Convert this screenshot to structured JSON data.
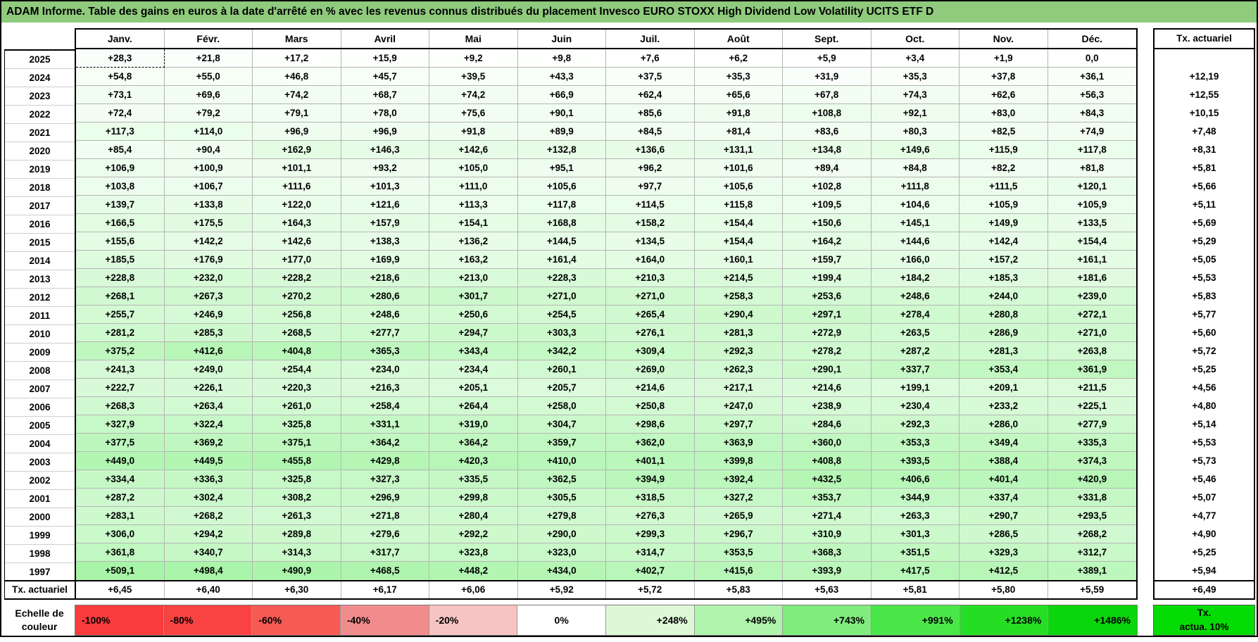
{
  "title": "ADAM Informe. Table des gains en euros à la date d'arrêté en % avec les revenus connus distribués du placement Invesco EURO STOXX High Dividend Low Volatility UCITS ETF D",
  "colors": {
    "title_bg": "#8FCA7D",
    "max_green": "#00E000",
    "grid_line": "#b5b5b5",
    "legend_tx_box_bg": "#05DC05"
  },
  "legend": {
    "label_line1": "Echelle de",
    "label_line2": "couleur",
    "tx_box_line1": "Tx.",
    "tx_box_line2": "actua. 10%",
    "stops": [
      {
        "label": "-100%",
        "color": "#FA3C3C"
      },
      {
        "label": "-80%",
        "color": "#F94343"
      },
      {
        "label": "-60%",
        "color": "#F75A54"
      },
      {
        "label": "-40%",
        "color": "#F18C8C"
      },
      {
        "label": "-20%",
        "color": "#F7C4C4"
      },
      {
        "label": "0%",
        "color": "#FFFFFF"
      },
      {
        "label": "+248%",
        "color": "#DDF8D6"
      },
      {
        "label": "+495%",
        "color": "#B0F3AC"
      },
      {
        "label": "+743%",
        "color": "#81EC7E"
      },
      {
        "label": "+991%",
        "color": "#4BE749"
      },
      {
        "label": "+1238%",
        "color": "#25DE24"
      },
      {
        "label": "+1486%",
        "color": "#0BD60B"
      }
    ]
  },
  "chart_data": {
    "type": "heatmap",
    "title": "Table des gains en euros à la date d'arrêté en % avec les revenus connus distribués",
    "value_unit": "percent_gain",
    "color_scale": {
      "zero": "0%",
      "max_label": "+1486%",
      "min_label": "-100%"
    },
    "tx_header": "Tx. actuariel",
    "columns": [
      "Janv.",
      "Févr.",
      "Mars",
      "Avril",
      "Mai",
      "Juin",
      "Juil.",
      "Août",
      "Sept.",
      "Oct.",
      "Nov.",
      "Déc."
    ],
    "rows": [
      {
        "year": "2025",
        "values": [
          "+28,3",
          "+21,8",
          "+17,2",
          "+15,9",
          "+9,2",
          "+9,8",
          "+7,6",
          "+6,2",
          "+5,9",
          "+3,4",
          "+1,9",
          "0,0"
        ],
        "tx": ""
      },
      {
        "year": "2024",
        "values": [
          "+54,8",
          "+55,0",
          "+46,8",
          "+45,7",
          "+39,5",
          "+43,3",
          "+37,5",
          "+35,3",
          "+31,9",
          "+35,3",
          "+37,8",
          "+36,1"
        ],
        "tx": "+12,19"
      },
      {
        "year": "2023",
        "values": [
          "+73,1",
          "+69,6",
          "+74,2",
          "+68,7",
          "+74,2",
          "+66,9",
          "+62,4",
          "+65,6",
          "+67,8",
          "+74,3",
          "+62,6",
          "+56,3"
        ],
        "tx": "+12,55"
      },
      {
        "year": "2022",
        "values": [
          "+72,4",
          "+79,2",
          "+79,1",
          "+78,0",
          "+75,6",
          "+90,1",
          "+85,6",
          "+91,8",
          "+108,8",
          "+92,1",
          "+83,0",
          "+84,3"
        ],
        "tx": "+10,15"
      },
      {
        "year": "2021",
        "values": [
          "+117,3",
          "+114,0",
          "+96,9",
          "+96,9",
          "+91,8",
          "+89,9",
          "+84,5",
          "+81,4",
          "+83,6",
          "+80,3",
          "+82,5",
          "+74,9"
        ],
        "tx": "+7,48"
      },
      {
        "year": "2020",
        "values": [
          "+85,4",
          "+90,4",
          "+162,9",
          "+146,3",
          "+142,6",
          "+132,8",
          "+136,6",
          "+131,1",
          "+134,8",
          "+149,6",
          "+115,9",
          "+117,8"
        ],
        "tx": "+8,31"
      },
      {
        "year": "2019",
        "values": [
          "+106,9",
          "+100,9",
          "+101,1",
          "+93,2",
          "+105,0",
          "+95,1",
          "+96,2",
          "+101,6",
          "+89,4",
          "+84,8",
          "+82,2",
          "+81,8"
        ],
        "tx": "+5,81"
      },
      {
        "year": "2018",
        "values": [
          "+103,8",
          "+106,7",
          "+111,6",
          "+101,3",
          "+111,0",
          "+105,6",
          "+97,7",
          "+105,6",
          "+102,8",
          "+111,8",
          "+111,5",
          "+120,1"
        ],
        "tx": "+5,66"
      },
      {
        "year": "2017",
        "values": [
          "+139,7",
          "+133,8",
          "+122,0",
          "+121,6",
          "+113,3",
          "+117,8",
          "+114,5",
          "+115,8",
          "+109,5",
          "+104,6",
          "+105,9",
          "+105,9"
        ],
        "tx": "+5,11"
      },
      {
        "year": "2016",
        "values": [
          "+166,5",
          "+175,5",
          "+164,3",
          "+157,9",
          "+154,1",
          "+168,8",
          "+158,2",
          "+154,4",
          "+150,6",
          "+145,1",
          "+149,9",
          "+133,5"
        ],
        "tx": "+5,69"
      },
      {
        "year": "2015",
        "values": [
          "+155,6",
          "+142,2",
          "+142,6",
          "+138,3",
          "+136,2",
          "+144,5",
          "+134,5",
          "+154,4",
          "+164,2",
          "+144,6",
          "+142,4",
          "+154,4"
        ],
        "tx": "+5,29"
      },
      {
        "year": "2014",
        "values": [
          "+185,5",
          "+176,9",
          "+177,0",
          "+169,9",
          "+163,2",
          "+161,4",
          "+164,0",
          "+160,1",
          "+159,7",
          "+166,0",
          "+157,2",
          "+161,1"
        ],
        "tx": "+5,05"
      },
      {
        "year": "2013",
        "values": [
          "+228,8",
          "+232,0",
          "+228,2",
          "+218,6",
          "+213,0",
          "+228,3",
          "+210,3",
          "+214,5",
          "+199,4",
          "+184,2",
          "+185,3",
          "+181,6"
        ],
        "tx": "+5,53"
      },
      {
        "year": "2012",
        "values": [
          "+268,1",
          "+267,3",
          "+270,2",
          "+280,6",
          "+301,7",
          "+271,0",
          "+271,0",
          "+258,3",
          "+253,6",
          "+248,6",
          "+244,0",
          "+239,0"
        ],
        "tx": "+5,83"
      },
      {
        "year": "2011",
        "values": [
          "+255,7",
          "+246,9",
          "+256,8",
          "+248,6",
          "+250,6",
          "+254,5",
          "+265,4",
          "+290,4",
          "+297,1",
          "+278,4",
          "+280,8",
          "+272,1"
        ],
        "tx": "+5,77"
      },
      {
        "year": "2010",
        "values": [
          "+281,2",
          "+285,3",
          "+268,5",
          "+277,7",
          "+294,7",
          "+303,3",
          "+276,1",
          "+281,3",
          "+272,9",
          "+263,5",
          "+286,9",
          "+271,0"
        ],
        "tx": "+5,60"
      },
      {
        "year": "2009",
        "values": [
          "+375,2",
          "+412,6",
          "+404,8",
          "+365,3",
          "+343,4",
          "+342,2",
          "+309,4",
          "+292,3",
          "+278,2",
          "+287,2",
          "+281,3",
          "+263,8"
        ],
        "tx": "+5,72"
      },
      {
        "year": "2008",
        "values": [
          "+241,3",
          "+249,0",
          "+254,4",
          "+234,0",
          "+234,4",
          "+260,1",
          "+269,0",
          "+262,3",
          "+290,1",
          "+337,7",
          "+353,4",
          "+361,9"
        ],
        "tx": "+5,25"
      },
      {
        "year": "2007",
        "values": [
          "+222,7",
          "+226,1",
          "+220,3",
          "+216,3",
          "+205,1",
          "+205,7",
          "+214,6",
          "+217,1",
          "+214,6",
          "+199,1",
          "+209,1",
          "+211,5"
        ],
        "tx": "+4,56"
      },
      {
        "year": "2006",
        "values": [
          "+268,3",
          "+263,4",
          "+261,0",
          "+258,4",
          "+264,4",
          "+258,0",
          "+250,8",
          "+247,0",
          "+238,9",
          "+230,4",
          "+233,2",
          "+225,1"
        ],
        "tx": "+4,80"
      },
      {
        "year": "2005",
        "values": [
          "+327,9",
          "+322,4",
          "+325,8",
          "+331,1",
          "+319,0",
          "+304,7",
          "+298,6",
          "+297,7",
          "+284,6",
          "+292,3",
          "+286,0",
          "+277,9"
        ],
        "tx": "+5,14"
      },
      {
        "year": "2004",
        "values": [
          "+377,5",
          "+369,2",
          "+375,1",
          "+364,2",
          "+364,2",
          "+359,7",
          "+362,0",
          "+363,9",
          "+360,0",
          "+353,3",
          "+349,4",
          "+335,3"
        ],
        "tx": "+5,53"
      },
      {
        "year": "2003",
        "values": [
          "+449,0",
          "+449,5",
          "+455,8",
          "+429,8",
          "+420,3",
          "+410,0",
          "+401,1",
          "+399,8",
          "+408,8",
          "+393,5",
          "+388,4",
          "+374,3"
        ],
        "tx": "+5,73"
      },
      {
        "year": "2002",
        "values": [
          "+334,4",
          "+336,3",
          "+325,8",
          "+327,3",
          "+335,5",
          "+362,5",
          "+394,9",
          "+392,4",
          "+432,5",
          "+406,6",
          "+401,4",
          "+420,9"
        ],
        "tx": "+5,46"
      },
      {
        "year": "2001",
        "values": [
          "+287,2",
          "+302,4",
          "+308,2",
          "+296,9",
          "+299,8",
          "+305,5",
          "+318,5",
          "+327,2",
          "+353,7",
          "+344,9",
          "+337,4",
          "+331,8"
        ],
        "tx": "+5,07"
      },
      {
        "year": "2000",
        "values": [
          "+283,1",
          "+268,2",
          "+261,3",
          "+271,8",
          "+280,4",
          "+279,8",
          "+276,3",
          "+265,9",
          "+271,4",
          "+263,3",
          "+290,7",
          "+293,5"
        ],
        "tx": "+4,77"
      },
      {
        "year": "1999",
        "values": [
          "+306,0",
          "+294,2",
          "+289,8",
          "+279,6",
          "+292,2",
          "+290,0",
          "+299,3",
          "+296,7",
          "+310,9",
          "+301,3",
          "+286,5",
          "+268,2"
        ],
        "tx": "+4,90"
      },
      {
        "year": "1998",
        "values": [
          "+361,8",
          "+340,7",
          "+314,3",
          "+317,7",
          "+323,8",
          "+323,0",
          "+314,7",
          "+353,5",
          "+368,3",
          "+351,5",
          "+329,3",
          "+312,7"
        ],
        "tx": "+5,25"
      },
      {
        "year": "1997",
        "values": [
          "+509,1",
          "+498,4",
          "+490,9",
          "+468,5",
          "+448,2",
          "+434,0",
          "+402,7",
          "+415,6",
          "+393,9",
          "+417,5",
          "+412,5",
          "+389,1"
        ],
        "tx": "+5,94"
      }
    ],
    "tx_row": {
      "label": "Tx. actuariel",
      "values": [
        "+6,45",
        "+6,40",
        "+6,30",
        "+6,17",
        "+6,06",
        "+5,92",
        "+5,72",
        "+5,83",
        "+5,63",
        "+5,81",
        "+5,80",
        "+5,59"
      ],
      "total": "+6,49"
    }
  }
}
